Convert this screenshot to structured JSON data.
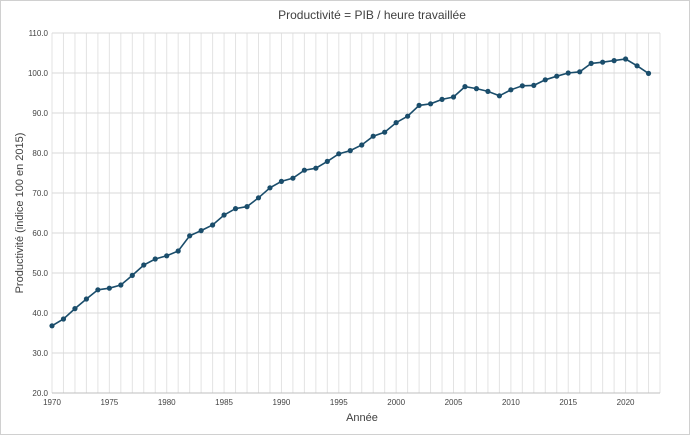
{
  "chart_data": {
    "type": "line",
    "title": "Productivité = PIB / heure travaillée",
    "xlabel": "Année",
    "ylabel": "Productivité (indice 100 en 2015)",
    "xlim": [
      1970,
      2023
    ],
    "ylim": [
      20,
      110
    ],
    "x_ticks": [
      "1970",
      "1975",
      "1980",
      "1985",
      "1990",
      "1995",
      "2000",
      "2005",
      "2010",
      "2015",
      "2020"
    ],
    "y_ticks": [
      "20.0",
      "30.0",
      "40.0",
      "50.0",
      "60.0",
      "70.0",
      "80.0",
      "90.0",
      "100.0",
      "110.0"
    ],
    "grid": true,
    "series": [
      {
        "name": "Productivité",
        "color": "#1a4d6b",
        "x": [
          1970,
          1971,
          1972,
          1973,
          1974,
          1975,
          1976,
          1977,
          1978,
          1979,
          1980,
          1981,
          1982,
          1983,
          1984,
          1985,
          1986,
          1987,
          1988,
          1989,
          1990,
          1991,
          1992,
          1993,
          1994,
          1995,
          1996,
          1997,
          1998,
          1999,
          2000,
          2001,
          2002,
          2003,
          2004,
          2005,
          2006,
          2007,
          2008,
          2009,
          2010,
          2011,
          2012,
          2013,
          2014,
          2015,
          2016,
          2017,
          2018,
          2019,
          2020,
          2021,
          2022
        ],
        "values": [
          36.8,
          38.5,
          41.1,
          43.5,
          45.8,
          46.2,
          47.0,
          49.4,
          52.0,
          53.5,
          54.3,
          55.5,
          59.3,
          60.6,
          62.0,
          64.5,
          66.1,
          66.6,
          68.8,
          71.3,
          72.9,
          73.7,
          75.7,
          76.2,
          77.9,
          79.8,
          80.6,
          82.0,
          84.2,
          85.2,
          87.6,
          89.2,
          91.9,
          92.3,
          93.4,
          94.0,
          96.6,
          96.1,
          95.4,
          94.3,
          95.8,
          96.8,
          96.9,
          98.3,
          99.2,
          100.0,
          100.3,
          102.4,
          102.7,
          103.1,
          103.5,
          101.8,
          99.9
        ]
      }
    ]
  }
}
